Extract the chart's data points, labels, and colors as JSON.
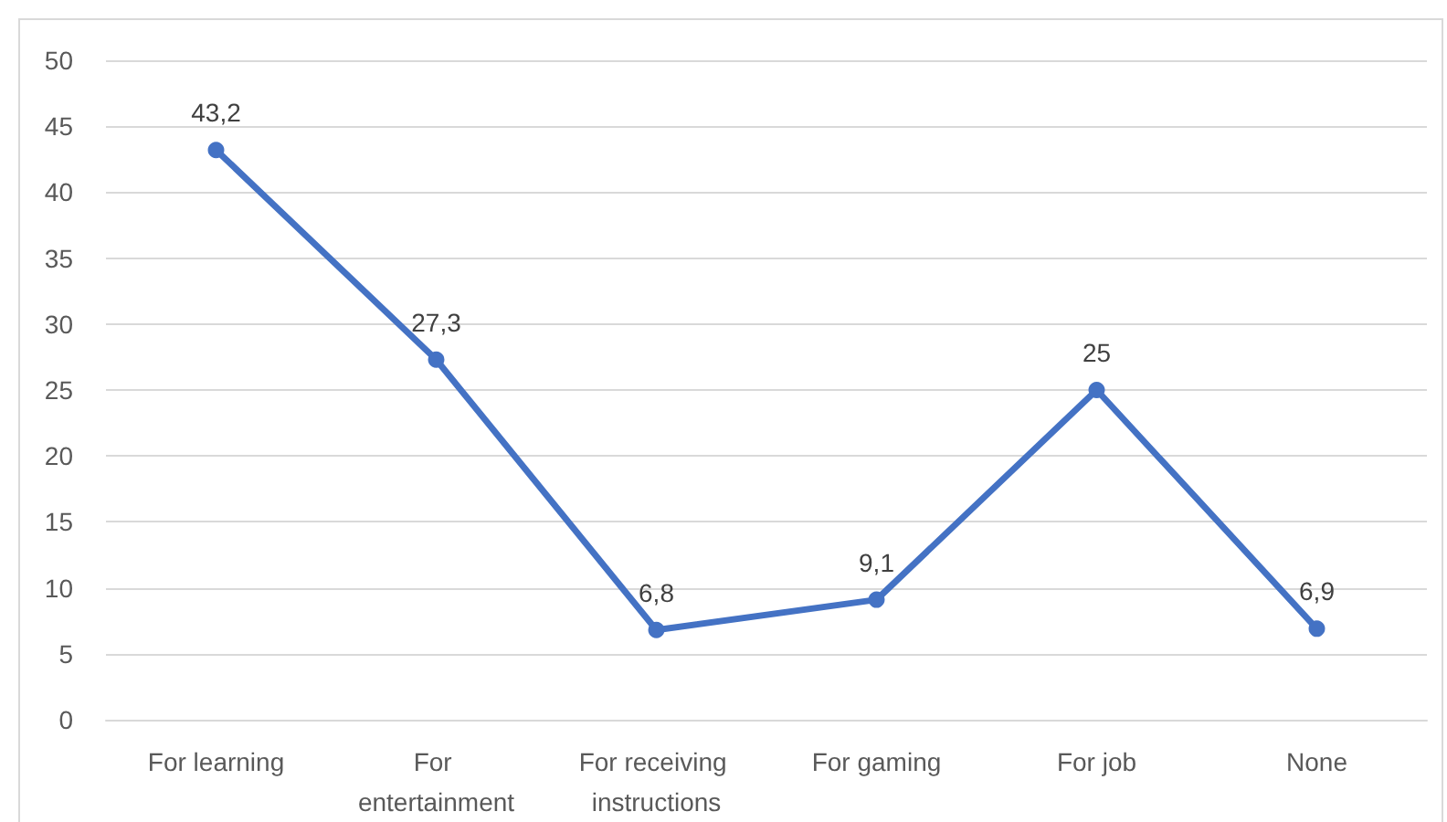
{
  "chart_data": {
    "type": "line",
    "categories": [
      "For learning",
      "For entertainment",
      "For receiving instructions",
      "For gaming",
      "For job",
      "None"
    ],
    "values": [
      43.2,
      27.3,
      6.8,
      9.1,
      25,
      6.9
    ],
    "value_labels": [
      "43,2",
      "27,3",
      "6,8",
      "9,1",
      "25",
      "6,9"
    ],
    "color": "#4472c4",
    "ylim": [
      0,
      50
    ],
    "yticks": [
      0,
      5,
      10,
      15,
      20,
      25,
      30,
      35,
      40,
      45,
      50
    ],
    "grid": "y",
    "marker": "circle"
  }
}
